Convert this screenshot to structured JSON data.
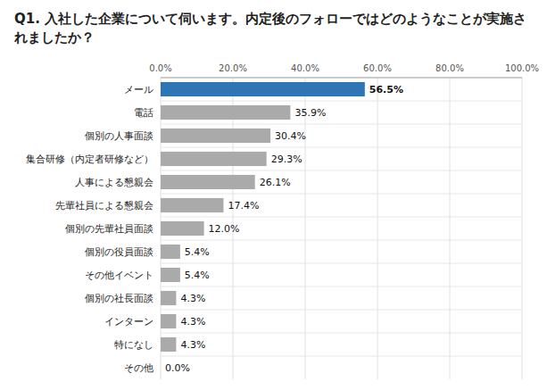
{
  "chart_data": {
    "type": "bar",
    "orientation": "horizontal",
    "title": "Q1. 入社した企業について伺います。内定後のフォローではどのようなことが実施されましたか？",
    "categories": [
      "メール",
      "電話",
      "個別の人事面談",
      "集合研修（内定者研修など）",
      "人事による懇親会",
      "先輩社員による懇親会",
      "個別の先輩社員面談",
      "個別の役員面談",
      "その他イベント",
      "個別の社長面談",
      "インターン",
      "特になし",
      "その他"
    ],
    "values": [
      56.5,
      35.9,
      30.4,
      29.3,
      26.1,
      17.4,
      12.0,
      5.4,
      5.4,
      4.3,
      4.3,
      4.3,
      0.0
    ],
    "value_labels": [
      "56.5%",
      "35.9%",
      "30.4%",
      "29.3%",
      "26.1%",
      "17.4%",
      "12.0%",
      "5.4%",
      "5.4%",
      "4.3%",
      "4.3%",
      "4.3%",
      "0.0%"
    ],
    "data_labels": true,
    "colors": [
      "#2E75B6",
      "#AAAAAA",
      "#AAAAAA",
      "#AAAAAA",
      "#AAAAAA",
      "#AAAAAA",
      "#AAAAAA",
      "#AAAAAA",
      "#AAAAAA",
      "#AAAAAA",
      "#AAAAAA",
      "#AAAAAA",
      "#AAAAAA"
    ],
    "xlim": [
      0,
      100
    ],
    "xticks": [
      {
        "value": 0,
        "label": "0.0%"
      },
      {
        "value": 20,
        "label": "20.0%"
      },
      {
        "value": 40,
        "label": "40.0%"
      },
      {
        "value": 60,
        "label": "60.0%"
      },
      {
        "value": 80,
        "label": "80.0%"
      },
      {
        "value": 100,
        "label": "100.0%"
      }
    ],
    "grid": true
  }
}
